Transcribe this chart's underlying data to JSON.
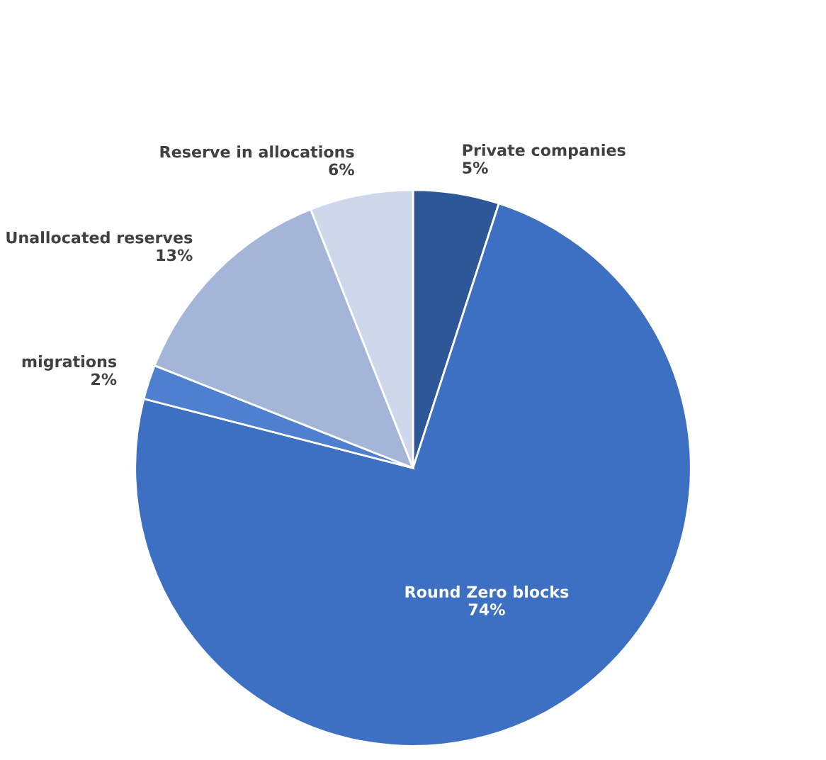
{
  "chart_data": {
    "type": "pie",
    "categories": [
      "Private companies",
      "Round Zero blocks",
      "migrations",
      "Unallocated reserves",
      "Reserve in allocations"
    ],
    "values": [
      5,
      74,
      2,
      13,
      6
    ],
    "value_labels": [
      "5%",
      "74%",
      "2%",
      "13%",
      "6%"
    ],
    "colors": [
      "#2e5797",
      "#3d70c2",
      "#4f80cf",
      "#a4b6d8",
      "#cdd8ec"
    ],
    "legend": false
  }
}
